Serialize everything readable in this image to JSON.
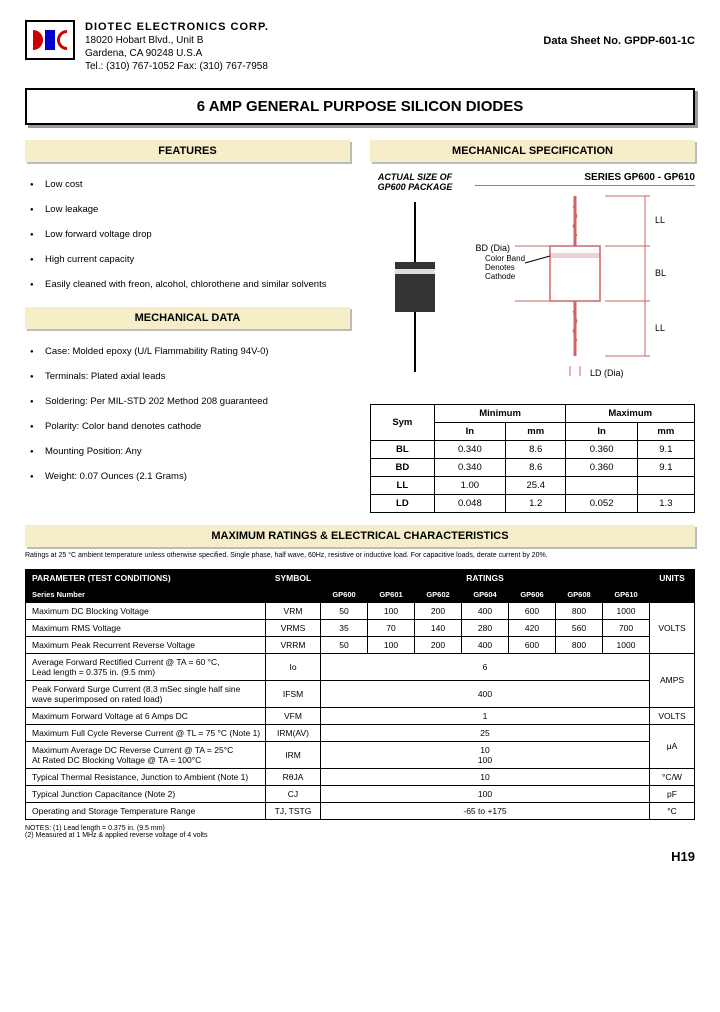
{
  "company": {
    "name": "DIOTEC  ELECTRONICS  CORP.",
    "addr1": "18020 Hobart Blvd.,  Unit B",
    "addr2": "Gardena, CA  90248   U.S.A",
    "contact": "Tel.:  (310) 767-1052    Fax:  (310) 767-7958"
  },
  "sheet_no": "Data Sheet No.   GPDP-601-1C",
  "title": "6 AMP GENERAL PURPOSE SILICON DIODES",
  "features_head": "FEATURES",
  "features": [
    "Low cost",
    "Low leakage",
    "Low forward voltage  drop",
    "High current capacity",
    "Easily cleaned with freon, alcohol, chlorothene and similar solvents"
  ],
  "mechdata_head": "MECHANICAL DATA",
  "mechdata": [
    "Case: Molded epoxy (U/L Flammability Rating 94V-0)",
    "Terminals: Plated axial leads",
    "Soldering: Per MIL-STD 202 Method 208 guaranteed",
    "Polarity: Color band denotes cathode",
    "Mounting Position: Any",
    "Weight: 0.07 Ounces (2.1 Grams)"
  ],
  "mechspec_head": "MECHANICAL  SPECIFICATION",
  "actual_label": "ACTUAL  SIZE OF GP600 PACKAGE",
  "series_label": "SERIES GP600 - GP610",
  "color_band": "Color Band Denotes Cathode",
  "dim_labels": {
    "bd": "BD (Dia)",
    "bl": "BL",
    "ll": "LL",
    "ld": "LD (Dia)"
  },
  "dim_table": {
    "sym": "Sym",
    "min": "Minimum",
    "max": "Maximum",
    "in": "In",
    "mm": "mm",
    "rows": [
      {
        "s": "BL",
        "mi": "0.340",
        "mm": "8.6",
        "xi": "0.360",
        "xm": "9.1"
      },
      {
        "s": "BD",
        "mi": "0.340",
        "mm": "8.6",
        "xi": "0.360",
        "xm": "9.1"
      },
      {
        "s": "LL",
        "mi": "1.00",
        "mm": "25.4",
        "xi": "",
        "xm": ""
      },
      {
        "s": "LD",
        "mi": "0.048",
        "mm": "1.2",
        "xi": "0.052",
        "xm": "1.3"
      }
    ]
  },
  "max_head": "MAXIMUM RATINGS & ELECTRICAL CHARACTERISTICS",
  "fine_print": "Ratings at 25 °C ambient temperature unless otherwise specified.\nSingle phase, half wave, 60Hz, resistive or inductive load.\nFor capacitive loads, derate current by 20%.",
  "rt": {
    "param_h": "PARAMETER (TEST CONDITIONS)",
    "sym_h": "SYMBOL",
    "rat_h": "RATINGS",
    "unit_h": "UNITS",
    "series_h": "Series Number",
    "series": [
      "GP600",
      "GP601",
      "GP602",
      "GP604",
      "GP606",
      "GP608",
      "GP610"
    ],
    "rows": [
      {
        "p": "Maximum DC Blocking Voltage",
        "s": "VRM",
        "v": [
          "50",
          "100",
          "200",
          "400",
          "600",
          "800",
          "1000"
        ],
        "u": ""
      },
      {
        "p": "Maximum RMS Voltage",
        "s": "VRMS",
        "v": [
          "35",
          "70",
          "140",
          "280",
          "420",
          "560",
          "700"
        ],
        "u": "VOLTS"
      },
      {
        "p": "Maximum Peak Recurrent Reverse Voltage",
        "s": "VRRM",
        "v": [
          "50",
          "100",
          "200",
          "400",
          "600",
          "800",
          "1000"
        ],
        "u": ""
      },
      {
        "p": "Average Forward Rectified Current @ TA = 60 °C,\nLead length = 0.375 in. (9.5 mm)",
        "s": "Io",
        "span": "6",
        "u": ""
      },
      {
        "p": "Peak Forward Surge Current (8.3 mSec single half sine wave superimposed on rated load)",
        "s": "IFSM",
        "span": "400",
        "u": "AMPS"
      },
      {
        "p": "Maximum Forward Voltage at 6 Amps DC",
        "s": "VFM",
        "span": "1",
        "u": "VOLTS"
      },
      {
        "p": "Maximum Full Cycle Reverse Current @ TL = 75 °C (Note 1)",
        "s": "IRM(AV)",
        "span": "25",
        "u": ""
      },
      {
        "p": "Maximum Average DC Reverse Current     @ TA =    25°C\nAt Rated DC Blocking Voltage                @ TA =  100°C",
        "s": "IRM",
        "span": "10\n100",
        "u": "μA"
      },
      {
        "p": "Typical Thermal Resistance, Junction to Ambient (Note 1)",
        "s": "RθJA",
        "span": "10",
        "u": "°C/W"
      },
      {
        "p": "Typical Junction Capacitance (Note 2)",
        "s": "CJ",
        "span": "100",
        "u": "pF"
      },
      {
        "p": "Operating and Storage Temperature Range",
        "s": "TJ, TSTG",
        "span": "-65 to +175",
        "u": "°C"
      }
    ]
  },
  "notes": "NOTES:  (1)  Lead length = 0.375 in. (9.5 mm)\n             (2)  Measured at 1 MHz & applied reverse voltage of 4 volts",
  "page_num": "H19"
}
